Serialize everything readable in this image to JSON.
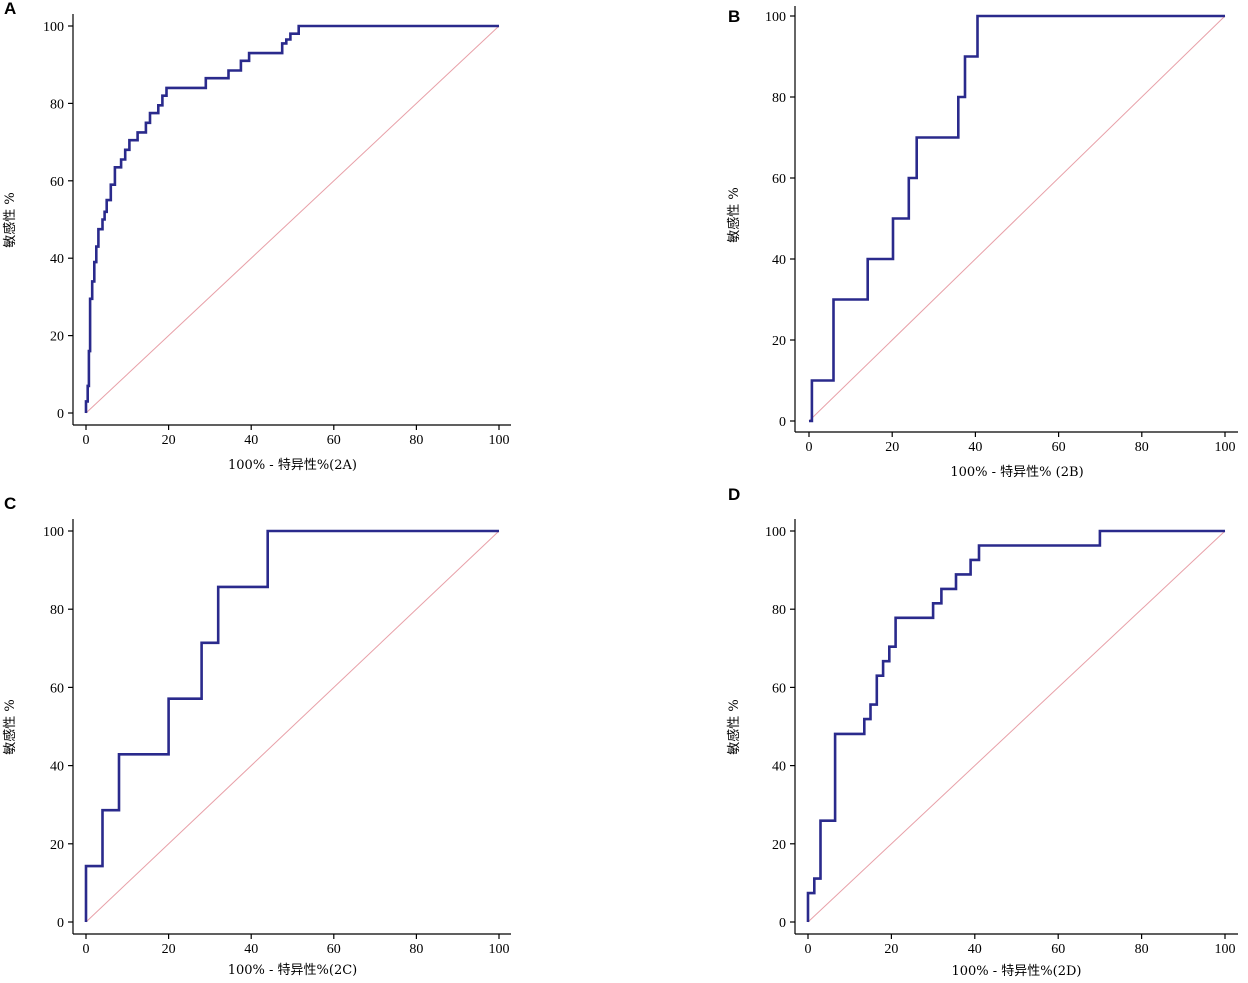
{
  "chart_data": [
    {
      "type": "line",
      "panel": "A",
      "title": "",
      "xlabel": "100% - 特异性%(2A)",
      "ylabel": "敏感性 %",
      "xlim": [
        0,
        100
      ],
      "ylim": [
        0,
        100
      ],
      "xticks": [
        "0",
        "20",
        "40",
        "60",
        "80",
        "100"
      ],
      "yticks": [
        "0",
        "20",
        "40",
        "60",
        "80",
        "100"
      ],
      "series": [
        {
          "name": "ROC",
          "x": [
            0,
            0,
            0.4,
            0.4,
            0.7,
            0.7,
            1.0,
            1.0,
            1.5,
            1.5,
            2.0,
            2.0,
            2.5,
            2.5,
            3.0,
            3.0,
            4.0,
            4.0,
            4.5,
            4.5,
            5.0,
            5.0,
            6.0,
            6.0,
            7.0,
            7.0,
            8.5,
            8.5,
            9.5,
            9.5,
            10.5,
            10.5,
            12.5,
            12.5,
            14.5,
            14.5,
            15.5,
            15.5,
            17.5,
            17.5,
            18.5,
            18.5,
            19.5,
            19.5,
            29.0,
            29.0,
            34.5,
            34.5,
            37.5,
            37.5,
            39.5,
            39.5,
            47.5,
            47.5,
            48.5,
            48.5,
            49.5,
            49.5,
            51.5,
            51.5,
            100
          ],
          "y": [
            0,
            3,
            3,
            7,
            7,
            16,
            16,
            29.5,
            29.5,
            34,
            34,
            39,
            39,
            43,
            43,
            47.5,
            47.5,
            50,
            50,
            52,
            52,
            55,
            55,
            59,
            59,
            63.5,
            63.5,
            65.5,
            65.5,
            68,
            68,
            70.5,
            70.5,
            72.5,
            72.5,
            75,
            75,
            77.5,
            77.5,
            79.5,
            79.5,
            82,
            82,
            84,
            84,
            86.5,
            86.5,
            88.5,
            88.5,
            91,
            91,
            93,
            93,
            95.5,
            95.5,
            96.5,
            96.5,
            98,
            98,
            100,
            100
          ]
        }
      ],
      "reference_line": {
        "x": [
          0,
          100
        ],
        "y": [
          0,
          100
        ]
      }
    },
    {
      "type": "line",
      "panel": "B",
      "title": "",
      "xlabel": "100% - 特异性% (2B)",
      "ylabel": "敏感性 %",
      "xlim": [
        0,
        100
      ],
      "ylim": [
        0,
        100
      ],
      "xticks": [
        "0",
        "20",
        "40",
        "60",
        "80",
        "100"
      ],
      "yticks": [
        "0",
        "20",
        "40",
        "60",
        "80",
        "100"
      ],
      "series": [
        {
          "name": "ROC",
          "x": [
            0,
            0.7,
            0.7,
            5.9,
            5.9,
            14.1,
            14.1,
            20.2,
            20.2,
            24.0,
            24.0,
            25.9,
            25.9,
            35.9,
            35.9,
            37.5,
            37.5,
            40.5,
            40.5,
            100
          ],
          "y": [
            0,
            0,
            10,
            10,
            30,
            30,
            40,
            40,
            50,
            50,
            60,
            60,
            70,
            70,
            80,
            80,
            90,
            90,
            100,
            100
          ]
        }
      ],
      "reference_line": {
        "x": [
          0,
          100
        ],
        "y": [
          0,
          100
        ]
      }
    },
    {
      "type": "line",
      "panel": "C",
      "title": "",
      "xlabel": "100% - 特异性%(2C)",
      "ylabel": "敏感性 %",
      "xlim": [
        0,
        100
      ],
      "ylim": [
        0,
        100
      ],
      "xticks": [
        "0",
        "20",
        "40",
        "60",
        "80",
        "100"
      ],
      "yticks": [
        "0",
        "20",
        "40",
        "60",
        "80",
        "100"
      ],
      "series": [
        {
          "name": "ROC",
          "x": [
            0,
            0,
            4,
            4,
            8,
            8,
            20,
            20,
            28,
            28,
            32,
            32,
            44,
            44,
            100
          ],
          "y": [
            0,
            14.3,
            14.3,
            28.6,
            28.6,
            42.9,
            42.9,
            57.1,
            57.1,
            71.4,
            71.4,
            85.7,
            85.7,
            100,
            100
          ]
        }
      ],
      "reference_line": {
        "x": [
          0,
          100
        ],
        "y": [
          0,
          100
        ]
      }
    },
    {
      "type": "line",
      "panel": "D",
      "title": "",
      "xlabel": "100% - 特异性%(2D)",
      "ylabel": "敏感性 %",
      "xlim": [
        0,
        100
      ],
      "ylim": [
        0,
        100
      ],
      "xticks": [
        "0",
        "20",
        "40",
        "60",
        "80",
        "100"
      ],
      "yticks": [
        "0",
        "20",
        "40",
        "60",
        "80",
        "100"
      ],
      "series": [
        {
          "name": "ROC",
          "x": [
            0,
            0,
            1.5,
            1.5,
            3.0,
            3.0,
            6.5,
            6.5,
            13.5,
            13.5,
            15.0,
            15.0,
            16.5,
            16.5,
            18.0,
            18.0,
            19.5,
            19.5,
            21.0,
            21.0,
            30.0,
            30.0,
            32.0,
            32.0,
            35.5,
            35.5,
            39.0,
            39.0,
            41.0,
            41.0,
            41.5,
            41.5,
            70.0,
            70.0,
            100
          ],
          "y": [
            0,
            7.4,
            7.4,
            11.1,
            11.1,
            25.9,
            25.9,
            48.1,
            48.1,
            51.9,
            51.9,
            55.6,
            55.6,
            63.0,
            63.0,
            66.7,
            66.7,
            70.4,
            70.4,
            77.8,
            77.8,
            81.5,
            81.5,
            85.2,
            85.2,
            88.9,
            88.9,
            92.6,
            92.6,
            96.3,
            96.3,
            96.3,
            96.3,
            100,
            100
          ]
        }
      ],
      "reference_line": {
        "x": [
          0,
          100
        ],
        "y": [
          0,
          100
        ]
      }
    }
  ]
}
